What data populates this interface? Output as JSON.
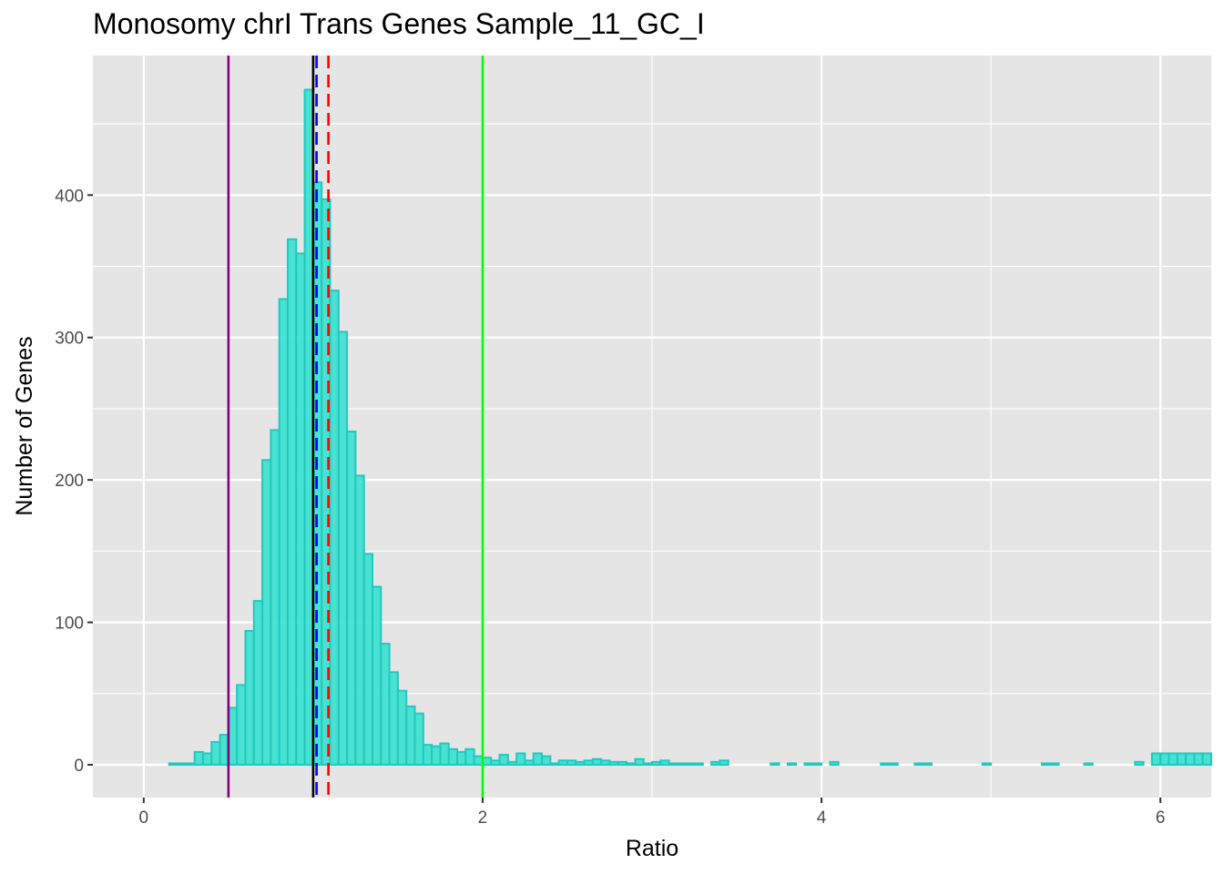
{
  "chart_data": {
    "type": "bar",
    "title": "Monosomy chrI Trans Genes Sample_11_GC_I",
    "xlabel": "Ratio",
    "ylabel": "Number of Genes",
    "xlim": [
      -0.3,
      6.3
    ],
    "ylim": [
      -23,
      498
    ],
    "x_ticks": [
      0,
      2,
      4,
      6
    ],
    "y_ticks": [
      0,
      100,
      200,
      300,
      400
    ],
    "grid": true,
    "bin_width": 0.05,
    "bins": [
      {
        "x": 0.0,
        "y": 0
      },
      {
        "x": 0.05,
        "y": 0
      },
      {
        "x": 0.1,
        "y": 0
      },
      {
        "x": 0.15,
        "y": 1
      },
      {
        "x": 0.2,
        "y": 1
      },
      {
        "x": 0.25,
        "y": 1
      },
      {
        "x": 0.3,
        "y": 9
      },
      {
        "x": 0.35,
        "y": 8
      },
      {
        "x": 0.4,
        "y": 16
      },
      {
        "x": 0.45,
        "y": 21
      },
      {
        "x": 0.5,
        "y": 40
      },
      {
        "x": 0.55,
        "y": 56
      },
      {
        "x": 0.6,
        "y": 94
      },
      {
        "x": 0.65,
        "y": 115
      },
      {
        "x": 0.7,
        "y": 214
      },
      {
        "x": 0.75,
        "y": 235
      },
      {
        "x": 0.8,
        "y": 327
      },
      {
        "x": 0.85,
        "y": 369
      },
      {
        "x": 0.9,
        "y": 359
      },
      {
        "x": 0.95,
        "y": 474
      },
      {
        "x": 1.0,
        "y": 409
      },
      {
        "x": 1.05,
        "y": 397
      },
      {
        "x": 1.1,
        "y": 333
      },
      {
        "x": 1.15,
        "y": 304
      },
      {
        "x": 1.2,
        "y": 234
      },
      {
        "x": 1.25,
        "y": 203
      },
      {
        "x": 1.3,
        "y": 148
      },
      {
        "x": 1.35,
        "y": 125
      },
      {
        "x": 1.4,
        "y": 85
      },
      {
        "x": 1.45,
        "y": 65
      },
      {
        "x": 1.5,
        "y": 52
      },
      {
        "x": 1.55,
        "y": 41
      },
      {
        "x": 1.6,
        "y": 36
      },
      {
        "x": 1.65,
        "y": 14
      },
      {
        "x": 1.7,
        "y": 13
      },
      {
        "x": 1.75,
        "y": 15
      },
      {
        "x": 1.8,
        "y": 11
      },
      {
        "x": 1.85,
        "y": 9
      },
      {
        "x": 1.9,
        "y": 11
      },
      {
        "x": 1.95,
        "y": 6
      },
      {
        "x": 2.0,
        "y": 5
      },
      {
        "x": 2.05,
        "y": 3
      },
      {
        "x": 2.1,
        "y": 7
      },
      {
        "x": 2.15,
        "y": 2
      },
      {
        "x": 2.2,
        "y": 8
      },
      {
        "x": 2.25,
        "y": 3
      },
      {
        "x": 2.3,
        "y": 8
      },
      {
        "x": 2.35,
        "y": 6
      },
      {
        "x": 2.4,
        "y": 1
      },
      {
        "x": 2.45,
        "y": 3
      },
      {
        "x": 2.5,
        "y": 3
      },
      {
        "x": 2.55,
        "y": 2
      },
      {
        "x": 2.6,
        "y": 3
      },
      {
        "x": 2.65,
        "y": 4
      },
      {
        "x": 2.7,
        "y": 3
      },
      {
        "x": 2.75,
        "y": 2
      },
      {
        "x": 2.8,
        "y": 2
      },
      {
        "x": 2.85,
        "y": 1
      },
      {
        "x": 2.9,
        "y": 4
      },
      {
        "x": 2.95,
        "y": 1
      },
      {
        "x": 3.0,
        "y": 2
      },
      {
        "x": 3.05,
        "y": 3
      },
      {
        "x": 3.1,
        "y": 1
      },
      {
        "x": 3.15,
        "y": 1
      },
      {
        "x": 3.2,
        "y": 1
      },
      {
        "x": 3.25,
        "y": 1
      },
      {
        "x": 3.3,
        "y": 0
      },
      {
        "x": 3.35,
        "y": 2
      },
      {
        "x": 3.4,
        "y": 3
      },
      {
        "x": 3.45,
        "y": 0
      },
      {
        "x": 3.5,
        "y": 0
      },
      {
        "x": 3.55,
        "y": 0
      },
      {
        "x": 3.6,
        "y": 0
      },
      {
        "x": 3.65,
        "y": 0
      },
      {
        "x": 3.7,
        "y": 1
      },
      {
        "x": 3.75,
        "y": 0
      },
      {
        "x": 3.8,
        "y": 1
      },
      {
        "x": 3.85,
        "y": 0
      },
      {
        "x": 3.9,
        "y": 1
      },
      {
        "x": 3.95,
        "y": 1
      },
      {
        "x": 4.0,
        "y": 0
      },
      {
        "x": 4.05,
        "y": 2
      },
      {
        "x": 4.1,
        "y": 0
      },
      {
        "x": 4.15,
        "y": 0
      },
      {
        "x": 4.2,
        "y": 0
      },
      {
        "x": 4.25,
        "y": 0
      },
      {
        "x": 4.3,
        "y": 0
      },
      {
        "x": 4.35,
        "y": 1
      },
      {
        "x": 4.4,
        "y": 1
      },
      {
        "x": 4.45,
        "y": 0
      },
      {
        "x": 4.5,
        "y": 0
      },
      {
        "x": 4.55,
        "y": 1
      },
      {
        "x": 4.6,
        "y": 1
      },
      {
        "x": 4.65,
        "y": 0
      },
      {
        "x": 4.7,
        "y": 0
      },
      {
        "x": 4.75,
        "y": 0
      },
      {
        "x": 4.8,
        "y": 0
      },
      {
        "x": 4.85,
        "y": 0
      },
      {
        "x": 4.9,
        "y": 0
      },
      {
        "x": 4.95,
        "y": 1
      },
      {
        "x": 5.0,
        "y": 0
      },
      {
        "x": 5.05,
        "y": 0
      },
      {
        "x": 5.1,
        "y": 0
      },
      {
        "x": 5.15,
        "y": 0
      },
      {
        "x": 5.2,
        "y": 0
      },
      {
        "x": 5.25,
        "y": 0
      },
      {
        "x": 5.3,
        "y": 1
      },
      {
        "x": 5.35,
        "y": 1
      },
      {
        "x": 5.4,
        "y": 0
      },
      {
        "x": 5.45,
        "y": 0
      },
      {
        "x": 5.5,
        "y": 0
      },
      {
        "x": 5.55,
        "y": 1
      },
      {
        "x": 5.6,
        "y": 0
      },
      {
        "x": 5.65,
        "y": 0
      },
      {
        "x": 5.7,
        "y": 0
      },
      {
        "x": 5.75,
        "y": 0
      },
      {
        "x": 5.8,
        "y": 0
      },
      {
        "x": 5.85,
        "y": 2
      },
      {
        "x": 5.9,
        "y": 0
      },
      {
        "x": 5.95,
        "y": 8
      },
      {
        "x": 6.0,
        "y": 8
      },
      {
        "x": 6.05,
        "y": 8
      },
      {
        "x": 6.1,
        "y": 8
      },
      {
        "x": 6.15,
        "y": 8
      },
      {
        "x": 6.2,
        "y": 8
      },
      {
        "x": 6.25,
        "y": 8
      }
    ],
    "reference_lines": [
      {
        "x": 0.5,
        "color": "#800080",
        "style": "solid"
      },
      {
        "x": 1.0,
        "color": "#000000",
        "style": "solid"
      },
      {
        "x": 1.02,
        "color": "#0000ff",
        "style": "dashed"
      },
      {
        "x": 1.09,
        "color": "#ff0000",
        "style": "dashed"
      },
      {
        "x": 2.0,
        "color": "#00ff00",
        "style": "solid"
      }
    ],
    "colors": {
      "bar_fill": "#40E0D0",
      "bar_stroke": "#20C9C0",
      "panel_background": "#e5e5e5",
      "grid": "#ffffff"
    }
  }
}
